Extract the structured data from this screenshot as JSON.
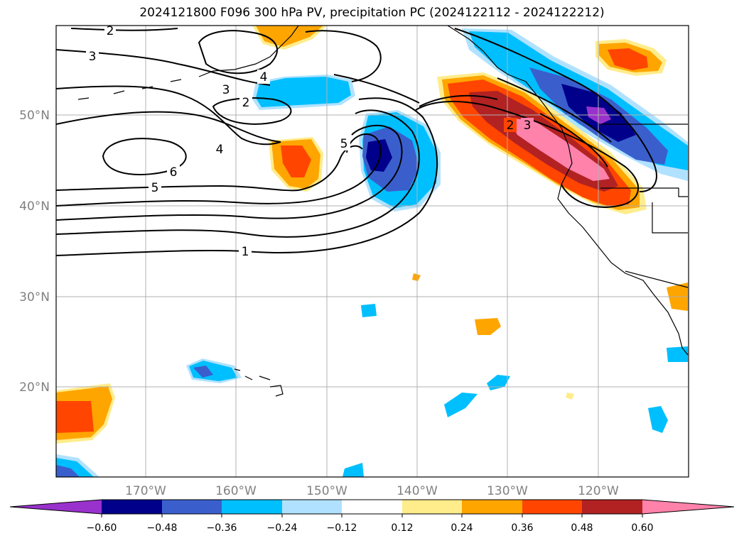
{
  "title": "2024121800 F096 300 hPa PV, precipitation PC (2024122112 - 2024122212)",
  "map": {
    "lon_labels": [
      "170°W",
      "160°W",
      "150°W",
      "140°W",
      "130°W",
      "120°W"
    ],
    "lat_labels": [
      "50°N",
      "40°N",
      "30°N",
      "20°N"
    ],
    "contour_labels": [
      "1",
      "2",
      "2",
      "2",
      "3",
      "3",
      "3",
      "4",
      "4",
      "5",
      "5",
      "6"
    ]
  },
  "colorbar": {
    "tick_labels": [
      "−0.60",
      "−0.48",
      "−0.36",
      "−0.24",
      "−0.12",
      "0.12",
      "0.24",
      "0.36",
      "0.48",
      "0.60"
    ],
    "colors": [
      "#9932cc",
      "#00008b",
      "#3a5fcd",
      "#00bfff",
      "#b0e2ff",
      "#ffffff",
      "#ffec8b",
      "#ffa500",
      "#ff4500",
      "#b22222",
      "#ff82ab"
    ]
  }
}
